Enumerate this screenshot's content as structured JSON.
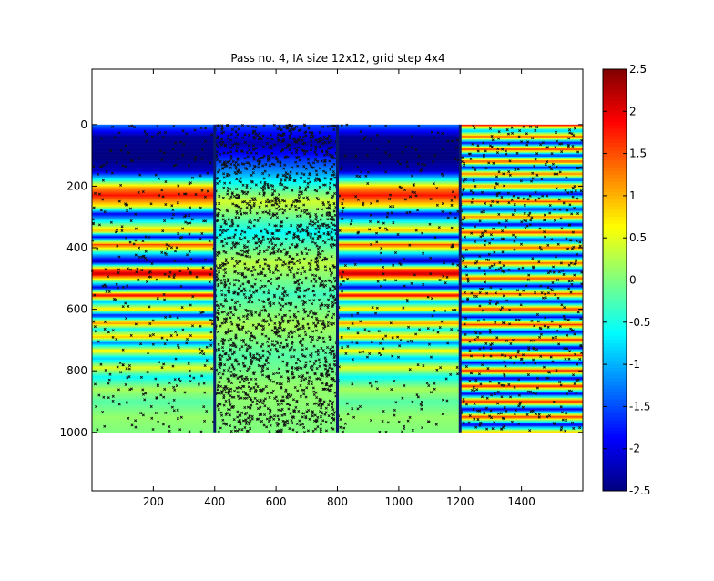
{
  "chart_data": {
    "type": "heatmap",
    "title": "Pass no. 4, IA size 12x12, grid step 4x4",
    "xlabel": "",
    "ylabel": "",
    "xlim": [
      0,
      1600
    ],
    "ylim": [
      -180,
      1190
    ],
    "y_reversed": true,
    "image_extent": {
      "x": [
        0,
        1600
      ],
      "y": [
        0,
        1000
      ]
    },
    "x_ticks": [
      200,
      400,
      600,
      800,
      1000,
      1200,
      1400
    ],
    "y_ticks": [
      0,
      200,
      400,
      600,
      800,
      1000
    ],
    "colormap": "jet",
    "color_range": [
      -2.5,
      2.5
    ],
    "colorbar_ticks": [
      2.5,
      2,
      1.5,
      1,
      0.5,
      0,
      -0.5,
      -1,
      -1.5,
      -2,
      -2.5
    ],
    "panels": [
      {
        "name": "panel-1",
        "x_range": [
          0,
          400
        ],
        "band_profile": [
          {
            "y": 0,
            "v": -1.3
          },
          {
            "y": 40,
            "v": -2.4
          },
          {
            "y": 110,
            "v": -2.5
          },
          {
            "y": 150,
            "v": -2.2
          },
          {
            "y": 180,
            "v": -0.5
          },
          {
            "y": 205,
            "v": 1.1
          },
          {
            "y": 230,
            "v": 1.8
          },
          {
            "y": 265,
            "v": 0.6
          },
          {
            "y": 290,
            "v": -1.9
          },
          {
            "y": 320,
            "v": -0.3
          },
          {
            "y": 345,
            "v": 1.0
          },
          {
            "y": 365,
            "v": -2.0
          },
          {
            "y": 390,
            "v": 1.5
          },
          {
            "y": 420,
            "v": -0.8
          },
          {
            "y": 445,
            "v": -2.3
          },
          {
            "y": 470,
            "v": 1.3
          },
          {
            "y": 485,
            "v": 2.2
          },
          {
            "y": 510,
            "v": -0.2
          },
          {
            "y": 530,
            "v": -2.0
          },
          {
            "y": 555,
            "v": 2.0
          },
          {
            "y": 575,
            "v": -1.0
          },
          {
            "y": 600,
            "v": 0.8
          },
          {
            "y": 620,
            "v": -1.8
          },
          {
            "y": 645,
            "v": 1.2
          },
          {
            "y": 665,
            "v": -0.6
          },
          {
            "y": 690,
            "v": 0.9
          },
          {
            "y": 710,
            "v": -1.2
          },
          {
            "y": 735,
            "v": 0.7
          },
          {
            "y": 760,
            "v": -0.9
          },
          {
            "y": 790,
            "v": 0.5
          },
          {
            "y": 820,
            "v": -0.6
          },
          {
            "y": 860,
            "v": 0.2
          },
          {
            "y": 900,
            "v": -0.2
          },
          {
            "y": 950,
            "v": 0.1
          },
          {
            "y": 1000,
            "v": 0.0
          }
        ],
        "noise_density": 0.1
      },
      {
        "name": "panel-2",
        "x_range": [
          400,
          800
        ],
        "band_profile": [
          {
            "y": 0,
            "v": -1.5
          },
          {
            "y": 60,
            "v": -2.3
          },
          {
            "y": 150,
            "v": -1.2
          },
          {
            "y": 250,
            "v": 0.4
          },
          {
            "y": 350,
            "v": -0.6
          },
          {
            "y": 450,
            "v": 0.3
          },
          {
            "y": 550,
            "v": -0.3
          },
          {
            "y": 650,
            "v": 0.2
          },
          {
            "y": 750,
            "v": -0.2
          },
          {
            "y": 850,
            "v": 0.1
          },
          {
            "y": 1000,
            "v": 0.0
          }
        ],
        "noise_density": 0.55
      },
      {
        "name": "panel-3",
        "x_range": [
          800,
          1200
        ],
        "band_profile": [
          {
            "y": 0,
            "v": -1.3
          },
          {
            "y": 40,
            "v": -2.4
          },
          {
            "y": 110,
            "v": -2.5
          },
          {
            "y": 150,
            "v": -2.2
          },
          {
            "y": 180,
            "v": -0.5
          },
          {
            "y": 205,
            "v": 1.1
          },
          {
            "y": 230,
            "v": 1.8
          },
          {
            "y": 265,
            "v": 0.6
          },
          {
            "y": 290,
            "v": -1.9
          },
          {
            "y": 320,
            "v": -0.3
          },
          {
            "y": 345,
            "v": 1.0
          },
          {
            "y": 365,
            "v": -2.0
          },
          {
            "y": 390,
            "v": 1.5
          },
          {
            "y": 420,
            "v": -0.8
          },
          {
            "y": 445,
            "v": -2.3
          },
          {
            "y": 470,
            "v": 1.3
          },
          {
            "y": 485,
            "v": 2.2
          },
          {
            "y": 510,
            "v": -0.2
          },
          {
            "y": 530,
            "v": -2.0
          },
          {
            "y": 555,
            "v": 2.0
          },
          {
            "y": 575,
            "v": -1.0
          },
          {
            "y": 600,
            "v": 0.8
          },
          {
            "y": 620,
            "v": -1.8
          },
          {
            "y": 645,
            "v": 1.2
          },
          {
            "y": 665,
            "v": -0.6
          },
          {
            "y": 690,
            "v": 0.9
          },
          {
            "y": 710,
            "v": -1.2
          },
          {
            "y": 735,
            "v": 0.7
          },
          {
            "y": 760,
            "v": -0.9
          },
          {
            "y": 790,
            "v": 0.5
          },
          {
            "y": 820,
            "v": -0.6
          },
          {
            "y": 860,
            "v": 0.2
          },
          {
            "y": 900,
            "v": -0.2
          },
          {
            "y": 950,
            "v": 0.1
          },
          {
            "y": 1000,
            "v": 0.0
          }
        ],
        "noise_density": 0.08
      },
      {
        "name": "panel-4",
        "x_range": [
          1200,
          1600
        ],
        "band_profile": [
          {
            "y": 0,
            "v": 2.0
          },
          {
            "y": 20,
            "v": -1.0
          },
          {
            "y": 40,
            "v": 1.5
          },
          {
            "y": 60,
            "v": -2.0
          },
          {
            "y": 80,
            "v": 1.8
          },
          {
            "y": 100,
            "v": -1.8
          },
          {
            "y": 120,
            "v": 1.6
          },
          {
            "y": 140,
            "v": -2.0
          },
          {
            "y": 160,
            "v": 1.4
          },
          {
            "y": 180,
            "v": -1.6
          },
          {
            "y": 200,
            "v": 1.2
          },
          {
            "y": 225,
            "v": -2.0
          },
          {
            "y": 250,
            "v": 1.5
          },
          {
            "y": 275,
            "v": -1.8
          },
          {
            "y": 300,
            "v": 1.3
          },
          {
            "y": 325,
            "v": -2.0
          },
          {
            "y": 350,
            "v": 1.6
          },
          {
            "y": 375,
            "v": -1.7
          },
          {
            "y": 400,
            "v": 1.5
          },
          {
            "y": 425,
            "v": -2.0
          },
          {
            "y": 450,
            "v": 1.4
          },
          {
            "y": 475,
            "v": -1.8
          },
          {
            "y": 500,
            "v": 1.6
          },
          {
            "y": 525,
            "v": -2.1
          },
          {
            "y": 550,
            "v": 1.5
          },
          {
            "y": 575,
            "v": -1.9
          },
          {
            "y": 600,
            "v": 1.7
          },
          {
            "y": 625,
            "v": -2.0
          },
          {
            "y": 650,
            "v": 1.6
          },
          {
            "y": 675,
            "v": -1.9
          },
          {
            "y": 700,
            "v": 1.8
          },
          {
            "y": 725,
            "v": -2.1
          },
          {
            "y": 750,
            "v": 1.7
          },
          {
            "y": 775,
            "v": -2.0
          },
          {
            "y": 800,
            "v": 1.8
          },
          {
            "y": 825,
            "v": -2.1
          },
          {
            "y": 850,
            "v": 1.7
          },
          {
            "y": 875,
            "v": -2.0
          },
          {
            "y": 900,
            "v": 1.8
          },
          {
            "y": 925,
            "v": -2.1
          },
          {
            "y": 950,
            "v": 1.6
          },
          {
            "y": 975,
            "v": -2.0
          },
          {
            "y": 1000,
            "v": 1.0
          }
        ],
        "noise_density": 0.15
      }
    ],
    "panel_separators": [
      400,
      800,
      1200
    ]
  }
}
